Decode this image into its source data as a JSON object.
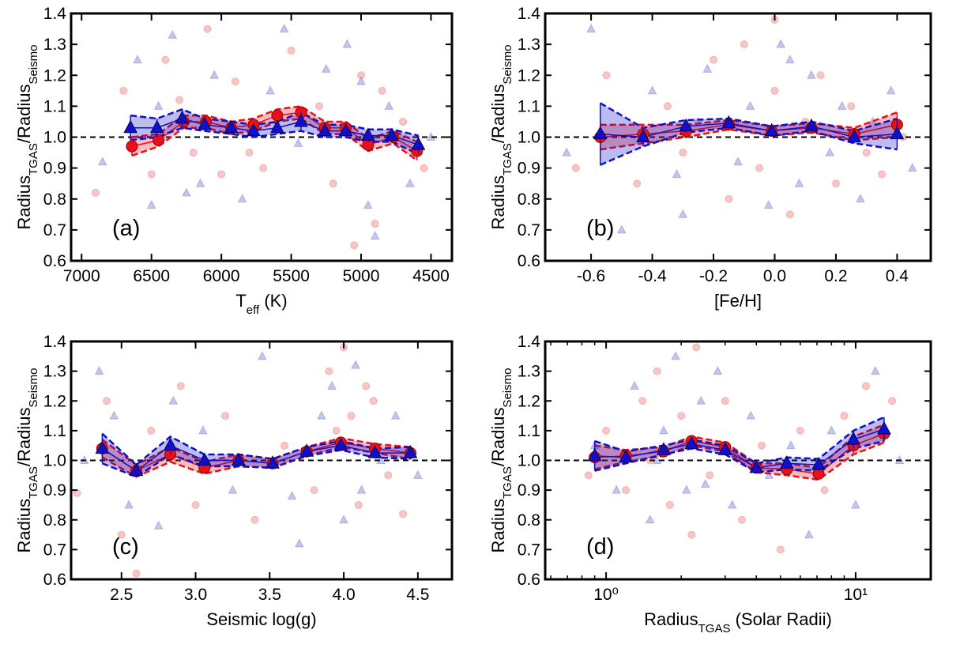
{
  "chart_data": [
    {
      "type": "scatter",
      "panel_label": "(a)",
      "xlabel": [
        {
          "text": "T"
        },
        {
          "text": "eff",
          "sub": true
        },
        {
          "text": " (K)"
        }
      ],
      "ylabel": [
        {
          "text": "Radius"
        },
        {
          "text": "TGAS",
          "sub": true
        },
        {
          "text": "/Radius"
        },
        {
          "text": "Seismo",
          "sub": true
        }
      ],
      "xscale": "linear",
      "xlim": [
        7075,
        4350
      ],
      "xticks": [
        7000,
        6500,
        6000,
        5500,
        5000,
        4500
      ],
      "ylim": [
        0.6,
        1.4
      ],
      "yticks": [
        0.6,
        0.7,
        0.8,
        0.9,
        {
          "value": 1,
          "label": "1.0"
        },
        1.1,
        1.2,
        1.3,
        1.4
      ],
      "reference_line": 1,
      "scatter": [
        {
          "color": "#f08080",
          "marker": "circle",
          "x": [
            6900,
            6700,
            6500,
            6400,
            6200,
            6100,
            5900,
            5700,
            5500,
            5300,
            5200,
            5000,
            4900,
            4700,
            4550,
            6300,
            5800,
            5050,
            4850,
            6000
          ],
          "values": [
            0.82,
            1.15,
            0.88,
            1.25,
            0.95,
            1.35,
            1.18,
            0.9,
            1.28,
            1.1,
            0.85,
            1.2,
            0.72,
            1.05,
            0.9,
            1.12,
            0.95,
            0.65,
            1.15,
            0.88
          ]
        },
        {
          "color": "#7f7fd8",
          "marker": "triangle",
          "x": [
            6850,
            6600,
            6450,
            6350,
            6150,
            6050,
            5850,
            5650,
            5450,
            5250,
            5100,
            4950,
            4800,
            4650,
            4500,
            6250,
            5550,
            5000,
            4900,
            6500
          ],
          "values": [
            0.92,
            1.25,
            1.1,
            1.33,
            0.85,
            1.2,
            0.8,
            1.15,
            0.98,
            1.22,
            1.3,
            0.78,
            1.1,
            0.85,
            1.0,
            0.82,
            1.35,
            1.18,
            0.68,
            0.78
          ]
        }
      ],
      "series": [
        {
          "color": "#e8101a",
          "marker": "circle",
          "x": [
            6640,
            6450,
            6270,
            6110,
            5930,
            5770,
            5600,
            5430,
            5260,
            5110,
            4950,
            4770,
            4600
          ],
          "values": [
            0.97,
            0.99,
            1.05,
            1.05,
            1.03,
            1.04,
            1.07,
            1.08,
            1.03,
            1.03,
            0.975,
            1.0,
            0.955
          ],
          "errors": [
            0.03,
            0.02,
            0.02,
            0.02,
            0.02,
            0.02,
            0.02,
            0.02,
            0.02,
            0.02,
            0.02,
            0.02,
            0.03
          ]
        },
        {
          "color": "#1010c8",
          "marker": "triangle",
          "x": [
            6650,
            6460,
            6280,
            6120,
            5930,
            5770,
            5600,
            5430,
            5260,
            5110,
            4950,
            4780,
            4590
          ],
          "values": [
            1.03,
            1.03,
            1.06,
            1.04,
            1.03,
            1.02,
            1.03,
            1.05,
            1.02,
            1.02,
            1.005,
            1.005,
            0.975
          ],
          "errors": [
            0.04,
            0.03,
            0.03,
            0.02,
            0.02,
            0.02,
            0.02,
            0.03,
            0.02,
            0.02,
            0.02,
            0.02,
            0.03
          ]
        }
      ]
    },
    {
      "type": "scatter",
      "panel_label": "(b)",
      "xlabel": [
        {
          "text": "[Fe/H]"
        }
      ],
      "ylabel": [
        {
          "text": "Radius"
        },
        {
          "text": "TGAS",
          "sub": true
        },
        {
          "text": "/Radius"
        },
        {
          "text": "Seismo",
          "sub": true
        }
      ],
      "xscale": "linear",
      "xlim": [
        -0.75,
        0.51
      ],
      "xticks": [
        -0.6,
        -0.4,
        -0.2,
        {
          "value": 0,
          "label": "0.0"
        },
        0.2,
        0.4
      ],
      "ylim": [
        0.6,
        1.4
      ],
      "yticks": [
        0.6,
        0.7,
        0.8,
        0.9,
        {
          "value": 1,
          "label": "1.0"
        },
        1.1,
        1.2,
        1.3,
        1.4
      ],
      "reference_line": 1,
      "scatter": [
        {
          "color": "#f08080",
          "marker": "circle",
          "x": [
            -0.65,
            -0.55,
            -0.45,
            -0.35,
            -0.3,
            -0.2,
            -0.15,
            -0.1,
            -0.05,
            0,
            0.05,
            0.1,
            0.15,
            0.2,
            0.25,
            0.3,
            0.35,
            -0.25,
            0.0,
            0.42
          ],
          "values": [
            0.9,
            1.2,
            0.85,
            1.1,
            0.95,
            1.25,
            0.8,
            1.3,
            0.9,
            1.15,
            0.75,
            1.05,
            1.2,
            0.85,
            1.1,
            0.95,
            0.88,
            1.05,
            1.38,
            1.0
          ]
        },
        {
          "color": "#7f7fd8",
          "marker": "triangle",
          "x": [
            -0.68,
            -0.6,
            -0.5,
            -0.4,
            -0.32,
            -0.22,
            -0.12,
            -0.08,
            -0.02,
            0.02,
            0.08,
            0.12,
            0.18,
            0.22,
            0.28,
            0.32,
            0.38,
            0.45,
            -0.3,
            0.05
          ],
          "values": [
            0.95,
            1.35,
            0.7,
            1.15,
            0.88,
            1.22,
            0.92,
            1.1,
            0.78,
            1.3,
            0.85,
            1.2,
            0.95,
            1.1,
            0.8,
            1.05,
            1.15,
            0.9,
            0.75,
            1.25
          ]
        }
      ],
      "series": [
        {
          "color": "#e8101a",
          "marker": "circle",
          "x": [
            -0.57,
            -0.43,
            -0.29,
            -0.15,
            -0.01,
            0.12,
            0.26,
            0.4
          ],
          "values": [
            1.0,
            1.01,
            1.02,
            1.04,
            1.02,
            1.03,
            1.01,
            1.04
          ],
          "errors": [
            0.04,
            0.03,
            0.02,
            0.015,
            0.015,
            0.015,
            0.02,
            0.04
          ]
        },
        {
          "color": "#1010c8",
          "marker": "triangle",
          "x": [
            -0.57,
            -0.43,
            -0.29,
            -0.15,
            -0.01,
            0.12,
            0.26,
            0.4
          ],
          "values": [
            1.01,
            1.0,
            1.035,
            1.045,
            1.02,
            1.035,
            1.0,
            1.01
          ],
          "errors": [
            0.1,
            0.03,
            0.02,
            0.015,
            0.015,
            0.015,
            0.02,
            0.05
          ]
        }
      ]
    },
    {
      "type": "scatter",
      "panel_label": "(c)",
      "xlabel": [
        {
          "text": "Seismic log(g)"
        }
      ],
      "ylabel": [
        {
          "text": "Radius"
        },
        {
          "text": "TGAS",
          "sub": true
        },
        {
          "text": "/Radius"
        },
        {
          "text": "Seismo",
          "sub": true
        }
      ],
      "xscale": "linear",
      "xlim": [
        2.16,
        4.73
      ],
      "xticks": [
        2.5,
        {
          "value": 3,
          "label": "3.0"
        },
        3.5,
        {
          "value": 4,
          "label": "4.0"
        },
        4.5
      ],
      "ylim": [
        0.6,
        1.4
      ],
      "yticks": [
        0.6,
        0.7,
        0.8,
        0.9,
        {
          "value": 1,
          "label": "1.0"
        },
        1.1,
        1.2,
        1.3,
        1.4
      ],
      "reference_line": 1,
      "scatter": [
        {
          "color": "#f08080",
          "marker": "circle",
          "x": [
            2.2,
            2.4,
            2.5,
            2.7,
            2.9,
            3.0,
            3.2,
            3.4,
            3.6,
            3.8,
            3.9,
            4.0,
            4.05,
            4.1,
            4.2,
            4.3,
            4.4,
            2.6,
            3.95,
            4.15
          ],
          "values": [
            0.89,
            1.2,
            0.75,
            1.1,
            1.25,
            0.85,
            1.15,
            0.8,
            1.05,
            0.9,
            1.3,
            1.38,
            1.15,
            0.85,
            1.2,
            0.95,
            0.82,
            0.62,
            1.1,
            1.25
          ]
        },
        {
          "color": "#7f7fd8",
          "marker": "triangle",
          "x": [
            2.25,
            2.35,
            2.55,
            2.75,
            2.85,
            3.05,
            3.25,
            3.45,
            3.65,
            3.85,
            3.92,
            4.02,
            4.08,
            4.12,
            4.25,
            4.35,
            4.5,
            2.45,
            3.7,
            4.0
          ],
          "values": [
            1.0,
            1.3,
            0.85,
            0.78,
            1.2,
            1.1,
            0.9,
            1.35,
            0.88,
            1.15,
            1.25,
            1.05,
            1.32,
            0.9,
            1.0,
            1.15,
            0.95,
            1.15,
            0.72,
            0.8
          ]
        }
      ],
      "series": [
        {
          "color": "#e8101a",
          "marker": "circle",
          "x": [
            2.37,
            2.6,
            2.83,
            3.06,
            3.29,
            3.52,
            3.75,
            3.98,
            4.21,
            4.45
          ],
          "values": [
            1.04,
            0.965,
            1.02,
            0.975,
            1.0,
            0.99,
            1.03,
            1.06,
            1.04,
            1.025
          ],
          "errors": [
            0.03,
            0.02,
            0.025,
            0.02,
            0.02,
            0.015,
            0.015,
            0.015,
            0.015,
            0.02
          ]
        },
        {
          "color": "#1010c8",
          "marker": "triangle",
          "x": [
            2.37,
            2.6,
            2.83,
            3.06,
            3.29,
            3.52,
            3.75,
            3.98,
            4.21,
            4.45
          ],
          "values": [
            1.04,
            0.965,
            1.05,
            1.0,
            1.0,
            0.99,
            1.03,
            1.05,
            1.025,
            1.025
          ],
          "errors": [
            0.05,
            0.02,
            0.03,
            0.02,
            0.02,
            0.015,
            0.015,
            0.015,
            0.015,
            0.02
          ]
        }
      ]
    },
    {
      "type": "scatter",
      "panel_label": "(d)",
      "xlabel": [
        {
          "text": "Radius"
        },
        {
          "text": "TGAS",
          "sub": true
        },
        {
          "text": " (Solar Radii)"
        }
      ],
      "ylabel": [
        {
          "text": "Radius"
        },
        {
          "text": "TGAS",
          "sub": true
        },
        {
          "text": "/Radius"
        },
        {
          "text": "Seismo",
          "sub": true
        }
      ],
      "xscale": "log",
      "xlim": [
        0.57,
        20
      ],
      "xticks": [
        {
          "value": 1,
          "label": "10⁰"
        },
        {
          "value": 10,
          "label": "10¹"
        }
      ],
      "minor_xticks": [
        0.6,
        0.7,
        0.8,
        0.9,
        2,
        3,
        4,
        5,
        6,
        7,
        8,
        9,
        20
      ],
      "ylim": [
        0.6,
        1.4
      ],
      "yticks": [
        0.6,
        0.7,
        0.8,
        0.9,
        {
          "value": 1,
          "label": "1.0"
        },
        1.1,
        1.2,
        1.3,
        1.4
      ],
      "reference_line": 1,
      "scatter": [
        {
          "color": "#f08080",
          "marker": "circle",
          "x": [
            0.85,
            1.0,
            1.2,
            1.4,
            1.6,
            1.8,
            2.0,
            2.3,
            2.6,
            3.0,
            3.5,
            4.2,
            5.0,
            6.0,
            7.5,
            9.0,
            11,
            14,
            2.2,
            1.5
          ],
          "values": [
            0.95,
            1.1,
            0.9,
            1.2,
            1.3,
            0.85,
            1.15,
            1.38,
            0.95,
            1.2,
            0.8,
            1.05,
            0.7,
            1.1,
            0.9,
            1.15,
            1.25,
            1.2,
            0.75,
            1.0
          ]
        },
        {
          "color": "#7f7fd8",
          "marker": "triangle",
          "x": [
            0.9,
            1.1,
            1.3,
            1.5,
            1.7,
            1.9,
            2.1,
            2.4,
            2.8,
            3.2,
            3.8,
            4.5,
            5.5,
            6.5,
            8.0,
            10,
            12,
            15,
            1.6,
            2.5
          ],
          "values": [
            1.05,
            0.9,
            1.25,
            0.8,
            1.1,
            1.35,
            0.9,
            1.2,
            1.3,
            0.85,
            1.15,
            0.95,
            1.05,
            0.75,
            1.1,
            0.85,
            1.3,
            1.0,
            1.0,
            0.92
          ]
        }
      ],
      "series": [
        {
          "color": "#e8101a",
          "marker": "circle",
          "x": [
            0.9,
            1.2,
            1.7,
            2.2,
            3.0,
            4.0,
            5.3,
            7.1,
            9.8,
            13
          ],
          "values": [
            1.01,
            1.015,
            1.03,
            1.065,
            1.045,
            0.975,
            0.97,
            0.955,
            1.05,
            1.09
          ],
          "errors": [
            0.04,
            0.02,
            0.015,
            0.015,
            0.015,
            0.015,
            0.02,
            0.02,
            0.03,
            0.03
          ]
        },
        {
          "color": "#1010c8",
          "marker": "triangle",
          "x": [
            0.9,
            1.2,
            1.7,
            2.2,
            3.0,
            4.0,
            5.3,
            7.1,
            9.8,
            13
          ],
          "values": [
            1.015,
            1.01,
            1.035,
            1.055,
            1.035,
            0.975,
            0.99,
            0.985,
            1.07,
            1.105
          ],
          "errors": [
            0.05,
            0.02,
            0.015,
            0.015,
            0.015,
            0.015,
            0.02,
            0.02,
            0.03,
            0.04
          ]
        }
      ]
    }
  ]
}
